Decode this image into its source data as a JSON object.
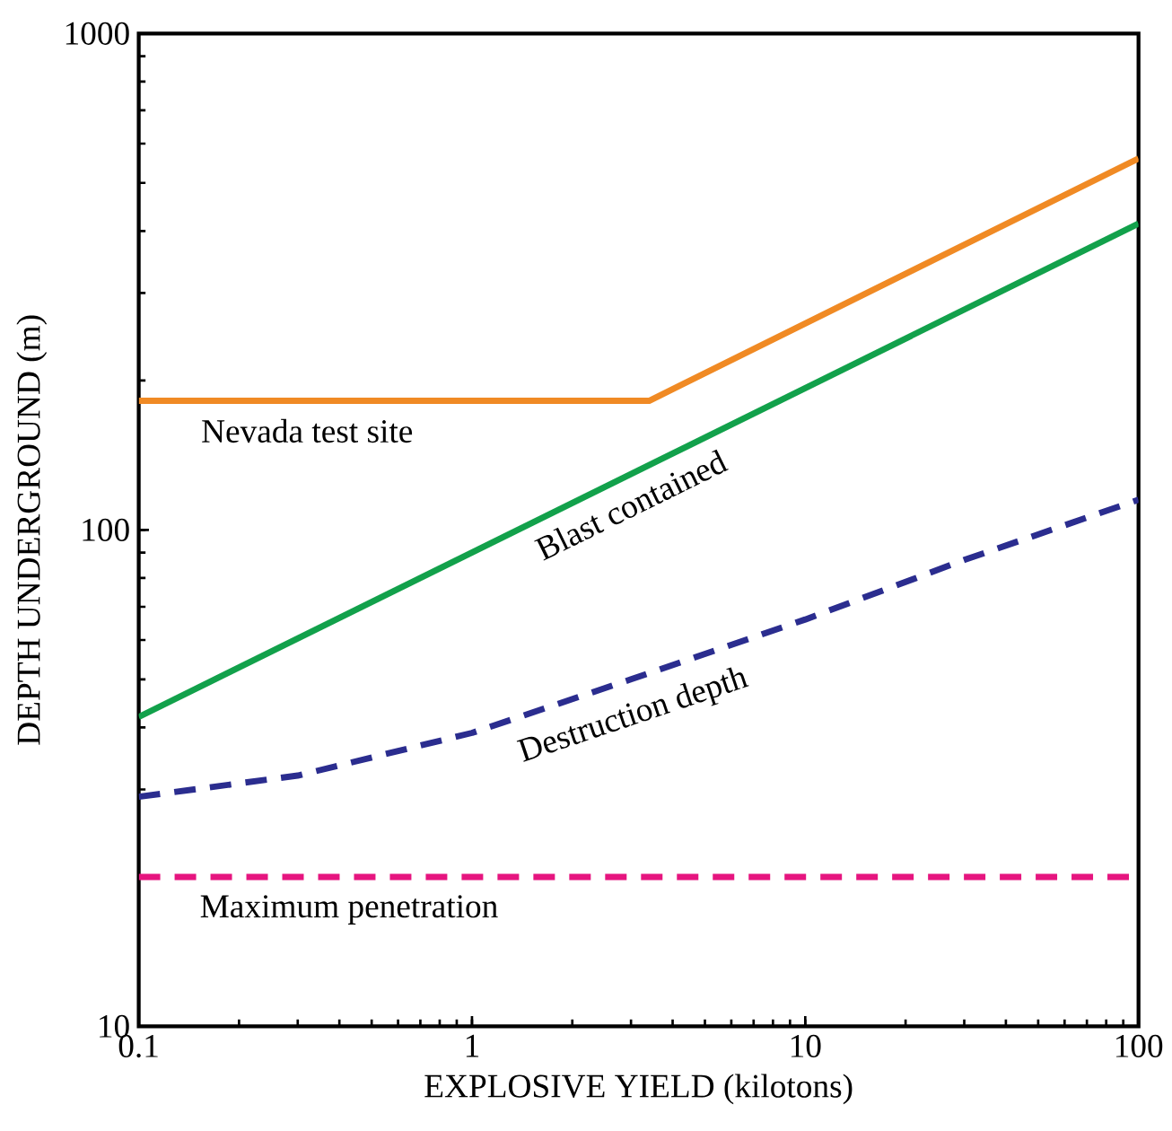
{
  "chart_data": {
    "type": "line",
    "xlabel": "EXPLOSIVE YIELD (kilotons)",
    "ylabel": "DEPTH UNDERGROUND (m)",
    "log": "xy",
    "xlim": [
      0.1,
      100
    ],
    "ylim": [
      10,
      1000
    ],
    "xticks": [
      0.1,
      1,
      10,
      100
    ],
    "yticks": [
      10,
      100,
      1000
    ],
    "grid": false,
    "series": [
      {
        "name": "Nevada test site",
        "color": "#f08a24",
        "line_style": "solid",
        "x": [
          0.1,
          3.4,
          100
        ],
        "values": [
          182,
          182,
          560
        ]
      },
      {
        "name": "Blast contained",
        "color": "#12a14b",
        "line_style": "solid",
        "x": [
          0.1,
          100
        ],
        "values": [
          42,
          414
        ]
      },
      {
        "name": "Destruction depth",
        "color": "#2b2d8f",
        "line_style": "dashed",
        "x": [
          0.1,
          0.3,
          1,
          3,
          10,
          30,
          100
        ],
        "values": [
          29,
          32,
          39,
          50,
          66,
          87,
          115
        ]
      },
      {
        "name": "Maximum penetration",
        "color": "#e6157f",
        "line_style": "dashed",
        "x": [
          0.1,
          100
        ],
        "values": [
          20,
          20
        ]
      }
    ]
  }
}
